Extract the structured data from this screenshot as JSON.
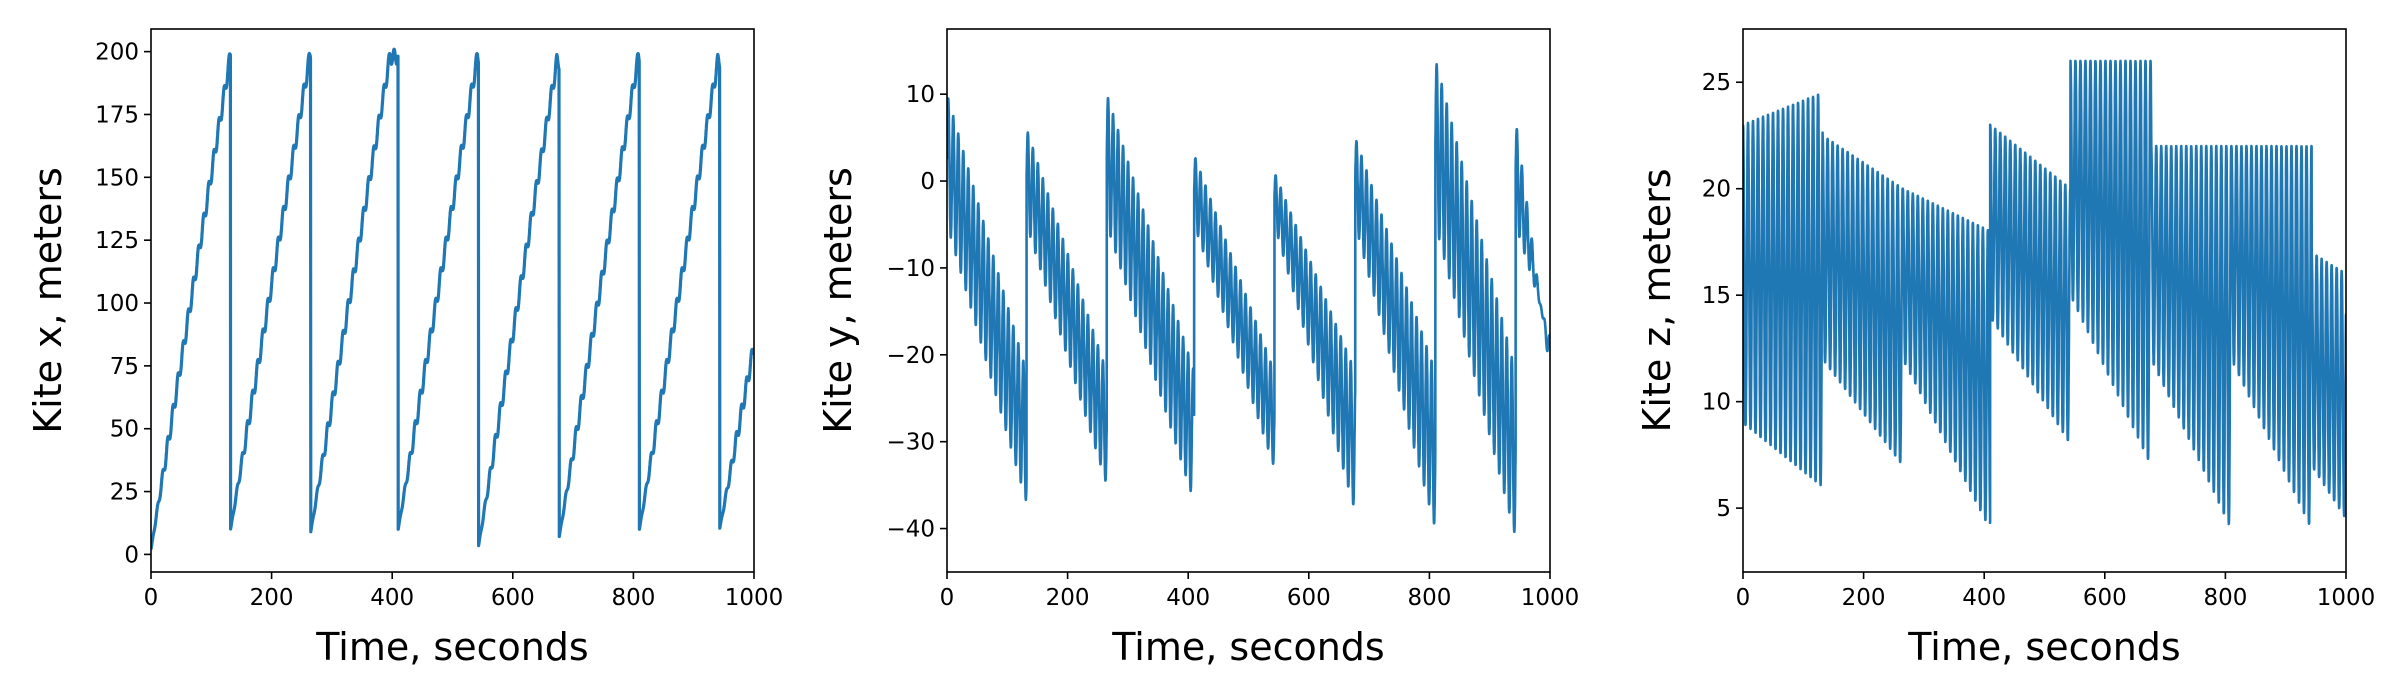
{
  "chart_data": [
    {
      "type": "line",
      "title": "",
      "xlabel": "Time, seconds",
      "ylabel": "Kite x, meters",
      "xlim": [
        0,
        1000
      ],
      "ylim": [
        -7,
        209
      ],
      "xticks": [
        0,
        200,
        400,
        600,
        800,
        1000
      ],
      "yticks": [
        0,
        25,
        50,
        75,
        100,
        125,
        150,
        175,
        200
      ],
      "line_color": "#1f77b4",
      "grid": false,
      "pattern": "sawtooth",
      "cycle_resets_x": [
        0,
        132,
        265,
        410,
        543,
        677,
        810,
        943
      ],
      "cycle_peaks_y": [
        199,
        199,
        198,
        198,
        196,
        198,
        196,
        83
      ],
      "cycle_start_y": [
        2,
        10,
        9,
        10,
        3,
        7,
        10,
        10
      ],
      "series": [
        {
          "x": [],
          "y": []
        }
      ]
    },
    {
      "type": "line",
      "title": "",
      "xlabel": "Time, seconds",
      "ylabel": "Kite y, meters",
      "xlim": [
        0,
        1000
      ],
      "ylim": [
        -45,
        17.5
      ],
      "xticks": [
        0,
        200,
        400,
        600,
        800,
        1000
      ],
      "yticks": [
        10,
        0,
        -10,
        -20,
        -30,
        -40
      ],
      "line_color": "#1f77b4",
      "grid": false,
      "pattern": "oscillating sawtooth",
      "cycle_resets_x": [
        0,
        132,
        265,
        410,
        543,
        677,
        810,
        943
      ],
      "cycle_top_start_y": [
        10,
        6,
        10,
        3,
        1,
        5,
        14,
        7
      ],
      "cycle_bottom_end_y": [
        -37,
        -35,
        -37,
        -33,
        -38,
        -40,
        -41,
        -18
      ],
      "series": [
        {
          "x": [],
          "y": []
        }
      ]
    },
    {
      "type": "line",
      "title": "",
      "xlabel": "Time, seconds",
      "ylabel": "Kite z, meters",
      "xlim": [
        0,
        1000
      ],
      "ylim": [
        2,
        27.5
      ],
      "xticks": [
        0,
        200,
        400,
        600,
        800,
        1000
      ],
      "yticks": [
        5,
        10,
        15,
        20,
        25
      ],
      "line_color": "#1f77b4",
      "grid": false,
      "pattern": "high-frequency oscillation",
      "cycle_resets_x": [
        0,
        132,
        265,
        410,
        543,
        677,
        810,
        943
      ],
      "envelope_upper_start": [
        23,
        22.5,
        20,
        23,
        26,
        22,
        22,
        17
      ],
      "envelope_upper_end": [
        24.5,
        20,
        18,
        20,
        26,
        22,
        22,
        16
      ],
      "envelope_lower_start": [
        9,
        12,
        12,
        14,
        15,
        12,
        12,
        7
      ],
      "envelope_lower_end": [
        6,
        7,
        4,
        8,
        7,
        4,
        4,
        4.5
      ],
      "series": [
        {
          "x": [],
          "y": []
        }
      ]
    }
  ]
}
